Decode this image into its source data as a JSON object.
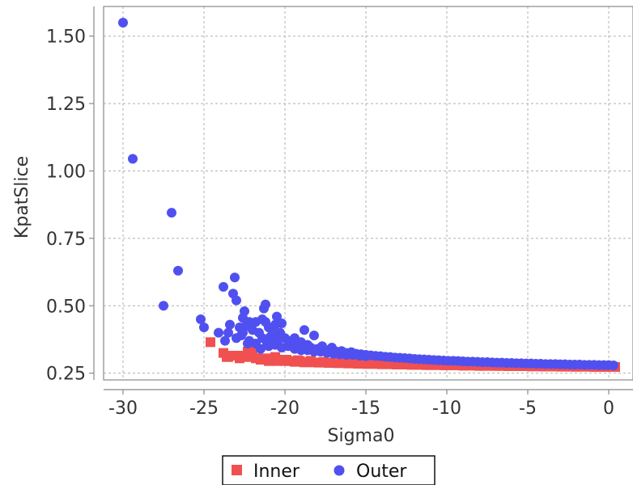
{
  "chart_data": {
    "type": "scatter",
    "title": "",
    "xlabel": "Sigma0",
    "ylabel": "KpatSlice",
    "xlim": [
      -31.2,
      1.5
    ],
    "ylim": [
      0.225,
      1.61
    ],
    "xticks": [
      -30,
      -25,
      -20,
      -15,
      -10,
      -5,
      0
    ],
    "xtick_labels": [
      "-30",
      "-25",
      "-20",
      "-15",
      "-10",
      "-5",
      "0"
    ],
    "yticks": [
      0.25,
      0.5,
      0.75,
      1.0,
      1.25,
      1.5
    ],
    "ytick_labels": [
      "0.25",
      "0.50",
      "0.75",
      "1.00",
      "1.25",
      "1.50"
    ],
    "grid": true,
    "legend_position": "bottom",
    "series": [
      {
        "name": "Inner",
        "marker": "square",
        "color": "#f05050",
        "x": [
          -24.6,
          -23.8,
          -23.5,
          -23.2,
          -22.8,
          -22.5,
          -22.3,
          -22.0,
          -21.8,
          -21.5,
          -21.2,
          -21.0,
          -20.8,
          -20.5,
          -20.2,
          -20.0,
          -19.7,
          -19.4,
          -19.1,
          -18.8,
          -18.5,
          -18.2,
          -17.9,
          -17.6,
          -17.3,
          -17.0,
          -16.7,
          -16.4,
          -16.1,
          -15.8,
          -15.5,
          -15.2,
          -14.9,
          -14.6,
          -14.3,
          -14.0,
          -13.7,
          -13.4,
          -13.1,
          -12.8,
          -12.5,
          -12.2,
          -11.9,
          -11.6,
          -11.3,
          -11.0,
          -10.7,
          -10.4,
          -10.1,
          -9.8,
          -9.5,
          -9.2,
          -8.9,
          -8.6,
          -8.3,
          -8.0,
          -7.7,
          -7.4,
          -7.1,
          -6.8,
          -6.5,
          -6.2,
          -5.9,
          -5.6,
          -5.3,
          -5.0,
          -4.7,
          -4.4,
          -4.1,
          -3.8,
          -3.5,
          -3.2,
          -2.9,
          -2.6,
          -2.3,
          -2.0,
          -1.7,
          -1.4,
          -1.1,
          -0.8,
          -0.5,
          -0.2,
          0.1,
          0.4,
          -23.6,
          -22.9,
          -22.1,
          -21.4,
          -20.6,
          -19.9,
          -19.2,
          -18.4,
          -17.6,
          -16.8,
          -16.0,
          -15.0,
          -14.0,
          -13.0,
          -12.0,
          -11.0,
          -10.0,
          -9.0,
          -8.0,
          -7.0,
          -6.0,
          -5.0,
          -4.0,
          -3.0,
          -2.0,
          -1.0,
          0.0
        ],
        "y": [
          0.365,
          0.325,
          0.31,
          0.315,
          0.305,
          0.31,
          0.33,
          0.34,
          0.305,
          0.3,
          0.3,
          0.295,
          0.305,
          0.295,
          0.3,
          0.295,
          0.295,
          0.292,
          0.295,
          0.29,
          0.292,
          0.29,
          0.289,
          0.29,
          0.288,
          0.289,
          0.287,
          0.288,
          0.286,
          0.287,
          0.285,
          0.286,
          0.284,
          0.285,
          0.284,
          0.283,
          0.284,
          0.283,
          0.282,
          0.283,
          0.282,
          0.281,
          0.282,
          0.281,
          0.28,
          0.281,
          0.28,
          0.28,
          0.279,
          0.28,
          0.279,
          0.279,
          0.278,
          0.279,
          0.278,
          0.278,
          0.277,
          0.278,
          0.277,
          0.277,
          0.277,
          0.276,
          0.277,
          0.276,
          0.276,
          0.276,
          0.275,
          0.276,
          0.275,
          0.275,
          0.275,
          0.275,
          0.274,
          0.275,
          0.274,
          0.274,
          0.274,
          0.274,
          0.274,
          0.273,
          0.274,
          0.273,
          0.273,
          0.273,
          0.31,
          0.315,
          0.31,
          0.305,
          0.31,
          0.3,
          0.298,
          0.296,
          0.292,
          0.29,
          0.289,
          0.287,
          0.285,
          0.283,
          0.281,
          0.28,
          0.279,
          0.278,
          0.277,
          0.277,
          0.276,
          0.276,
          0.275,
          0.275,
          0.274,
          0.274,
          0.273
        ]
      },
      {
        "name": "Outer",
        "marker": "circle",
        "color": "#5050f0",
        "x": [
          -30.0,
          -29.4,
          -27.0,
          -26.6,
          -27.5,
          -25.2,
          -25.0,
          -24.1,
          -23.8,
          -23.5,
          -23.2,
          -23.1,
          -23.0,
          -22.8,
          -22.7,
          -22.5,
          -22.6,
          -22.4,
          -22.2,
          -22.0,
          -21.8,
          -21.6,
          -21.4,
          -21.3,
          -21.2,
          -21.0,
          -20.9,
          -20.8,
          -20.6,
          -20.5,
          -20.4,
          -20.2,
          -20.0,
          -19.8,
          -19.6,
          -19.4,
          -19.2,
          -19.0,
          -18.8,
          -18.6,
          -18.4,
          -18.2,
          -18.0,
          -17.7,
          -17.4,
          -17.1,
          -16.8,
          -16.5,
          -16.2,
          -15.9,
          -15.6,
          -15.3,
          -15.0,
          -14.7,
          -14.4,
          -14.1,
          -13.8,
          -13.5,
          -13.2,
          -12.9,
          -12.6,
          -12.3,
          -12.0,
          -11.7,
          -11.4,
          -11.1,
          -10.8,
          -10.5,
          -10.2,
          -9.9,
          -9.6,
          -9.3,
          -9.0,
          -8.7,
          -8.4,
          -8.1,
          -7.8,
          -7.5,
          -7.2,
          -6.9,
          -6.6,
          -6.3,
          -6.0,
          -5.7,
          -5.4,
          -5.1,
          -4.8,
          -4.5,
          -4.2,
          -3.9,
          -3.6,
          -3.3,
          -3.0,
          -2.7,
          -2.4,
          -2.1,
          -1.8,
          -1.5,
          -1.2,
          -0.9,
          -0.6,
          -0.3,
          0.0,
          0.3,
          -23.4,
          -23.0,
          -22.6,
          -22.2,
          -21.8,
          -21.4,
          -21.0,
          -20.6,
          -20.2,
          -19.8,
          -19.4,
          -19.0,
          -18.6,
          -18.2,
          -17.8,
          -17.4,
          -17.0,
          -16.6,
          -16.2,
          -15.8,
          -15.4,
          -15.0,
          -21.2,
          -21.1,
          -20.6,
          -20.3,
          -20.8,
          -21.5,
          -22.3,
          -23.7
        ],
        "y": [
          1.55,
          1.045,
          0.845,
          0.63,
          0.5,
          0.45,
          0.42,
          0.4,
          0.57,
          0.4,
          0.545,
          0.605,
          0.52,
          0.42,
          0.39,
          0.48,
          0.455,
          0.425,
          0.44,
          0.41,
          0.44,
          0.4,
          0.45,
          0.49,
          0.505,
          0.42,
          0.385,
          0.41,
          0.39,
          0.46,
          0.375,
          0.435,
          0.38,
          0.37,
          0.36,
          0.38,
          0.35,
          0.365,
          0.41,
          0.355,
          0.345,
          0.39,
          0.34,
          0.35,
          0.335,
          0.345,
          0.33,
          0.332,
          0.325,
          0.328,
          0.322,
          0.32,
          0.318,
          0.316,
          0.314,
          0.313,
          0.311,
          0.31,
          0.308,
          0.307,
          0.306,
          0.305,
          0.303,
          0.302,
          0.301,
          0.3,
          0.299,
          0.298,
          0.297,
          0.296,
          0.296,
          0.295,
          0.294,
          0.293,
          0.293,
          0.292,
          0.291,
          0.291,
          0.29,
          0.289,
          0.289,
          0.288,
          0.288,
          0.287,
          0.287,
          0.286,
          0.286,
          0.285,
          0.285,
          0.284,
          0.284,
          0.284,
          0.283,
          0.283,
          0.282,
          0.282,
          0.282,
          0.281,
          0.281,
          0.281,
          0.28,
          0.28,
          0.28,
          0.279,
          0.43,
          0.38,
          0.4,
          0.37,
          0.36,
          0.38,
          0.35,
          0.355,
          0.345,
          0.35,
          0.34,
          0.335,
          0.335,
          0.33,
          0.33,
          0.325,
          0.322,
          0.32,
          0.318,
          0.318,
          0.315,
          0.313,
          0.44,
          0.36,
          0.43,
          0.4,
          0.37,
          0.34,
          0.36,
          0.37
        ]
      }
    ]
  }
}
